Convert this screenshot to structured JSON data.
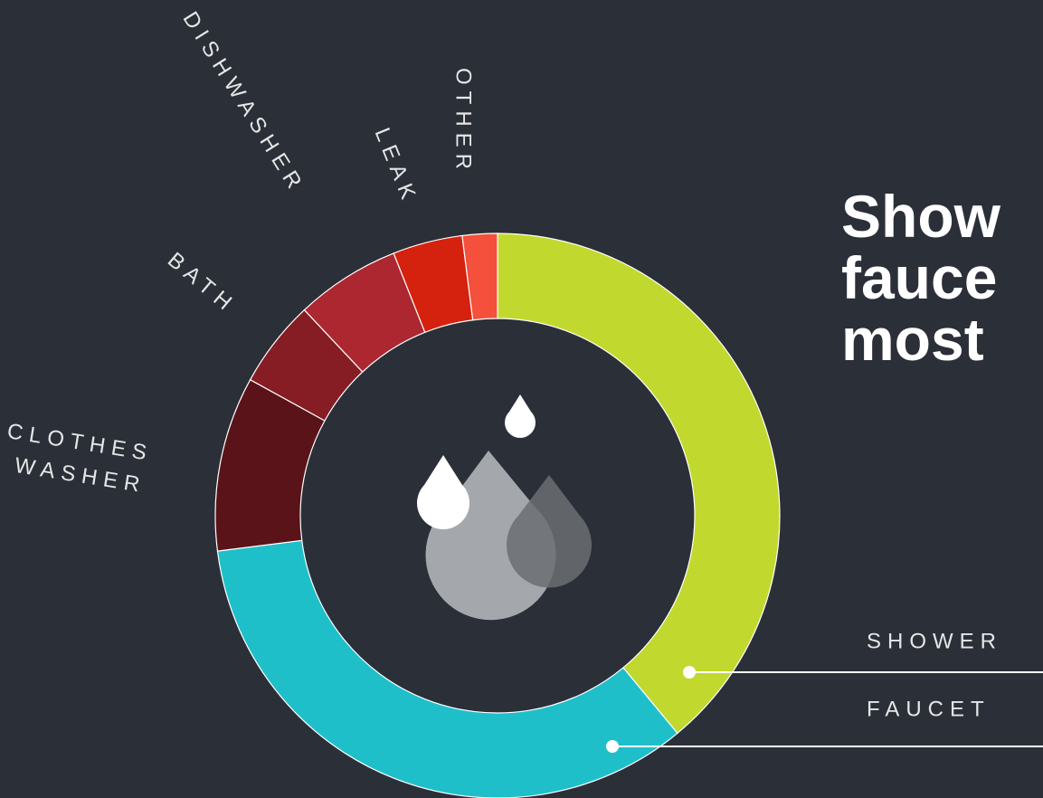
{
  "chart_data": {
    "type": "donut",
    "title_lines": [
      "Show",
      "fauce",
      "most"
    ],
    "categories": [
      "SHOWER",
      "FAUCET",
      "CLOTHES WASHER",
      "BATH",
      "DISHWASHER",
      "LEAK",
      "OTHER"
    ],
    "values": [
      39,
      34,
      10,
      5,
      6,
      4,
      2
    ],
    "colors": [
      "#c1d82f",
      "#1fbfca",
      "#5a1419",
      "#861c24",
      "#ad2730",
      "#d4220e",
      "#f4503b"
    ]
  }
}
